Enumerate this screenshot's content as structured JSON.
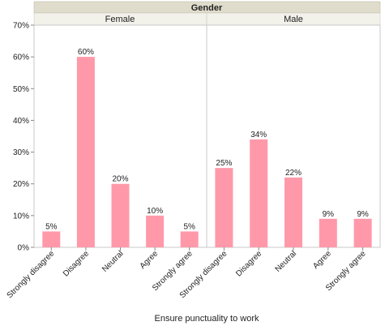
{
  "chart_data": {
    "type": "bar",
    "group_title": "Gender",
    "xlabel": "Ensure punctuality to work",
    "ylabel": "",
    "ylim": [
      0,
      70
    ],
    "yticks": [
      0,
      10,
      20,
      30,
      40,
      50,
      60,
      70
    ],
    "ytick_labels": [
      "0%",
      "10%",
      "20%",
      "30%",
      "40%",
      "50%",
      "60%",
      "70%"
    ],
    "grid": false,
    "bar_color": "#ff99aa",
    "header_color": "#e0dccc",
    "panels": [
      {
        "name": "Female",
        "categories": [
          "Strongly disagree",
          "Disagree",
          "Neutral",
          "Agree",
          "Strongly agree"
        ],
        "values": [
          5,
          60,
          20,
          10,
          5
        ],
        "labels": [
          "5%",
          "60%",
          "20%",
          "10%",
          "5%"
        ]
      },
      {
        "name": "Male",
        "categories": [
          "Strongly disagree",
          "Disagree",
          "Neutral",
          "Agree",
          "Strongly agree"
        ],
        "values": [
          25,
          34,
          22,
          9,
          9
        ],
        "labels": [
          "25%",
          "34%",
          "22%",
          "9%",
          "9%"
        ]
      }
    ]
  }
}
